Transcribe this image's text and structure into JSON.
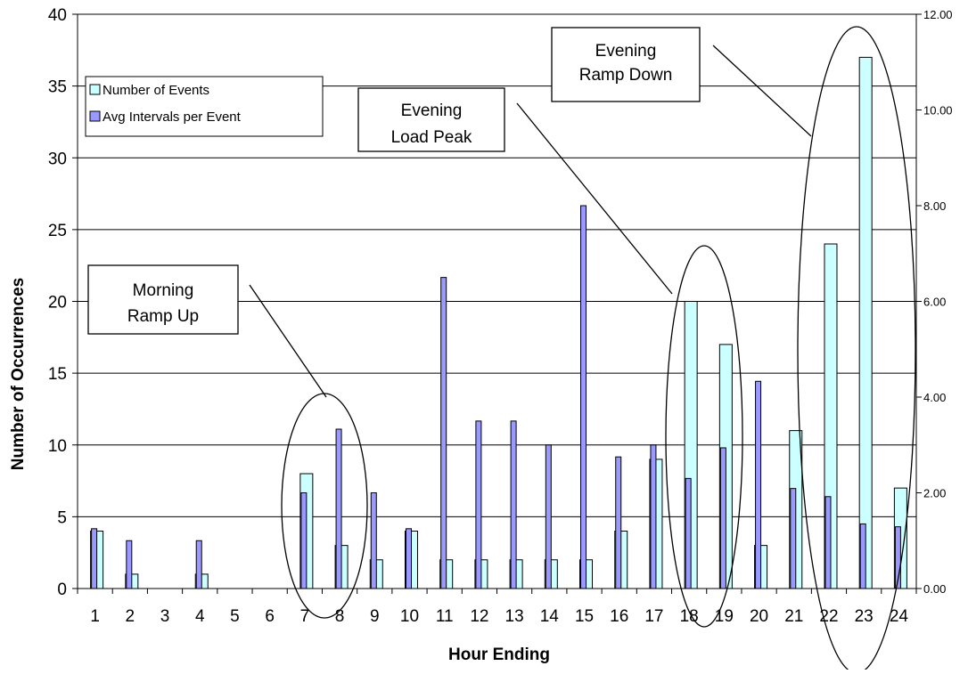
{
  "chart_data": {
    "type": "bar",
    "title": "",
    "xlabel": "Hour Ending",
    "ylabel": "Number of Occurrences",
    "y2label": "",
    "categories": [
      "1",
      "2",
      "3",
      "4",
      "5",
      "6",
      "7",
      "8",
      "9",
      "10",
      "11",
      "12",
      "13",
      "14",
      "15",
      "16",
      "17",
      "18",
      "19",
      "20",
      "21",
      "22",
      "23",
      "24"
    ],
    "ylim": [
      0,
      40
    ],
    "y2lim": [
      0,
      12
    ],
    "y_ticks": [
      "0",
      "5",
      "10",
      "15",
      "20",
      "25",
      "30",
      "35",
      "40"
    ],
    "y2_ticks": [
      "0.00",
      "2.00",
      "4.00",
      "6.00",
      "8.00",
      "10.00",
      "12.00"
    ],
    "grid": true,
    "legend_position": "top-left",
    "series": [
      {
        "name": "Number of Events",
        "axis": "left",
        "color": "#ccffff",
        "values": [
          4,
          1,
          0,
          1,
          0,
          0,
          8,
          3,
          2,
          4,
          2,
          2,
          2,
          2,
          2,
          4,
          9,
          20,
          17,
          3,
          11,
          24,
          37,
          7
        ]
      },
      {
        "name": "Avg Intervals per Event",
        "axis": "right",
        "color": "#9999ff",
        "values": [
          1.25,
          1.0,
          0,
          1.0,
          0,
          0,
          2.0,
          3.33,
          2.0,
          1.25,
          6.5,
          3.5,
          3.5,
          3.0,
          8.0,
          2.75,
          3.0,
          2.3,
          2.94,
          4.33,
          2.09,
          1.92,
          1.35,
          1.29
        ]
      }
    ],
    "annotations": [
      {
        "id": "morning",
        "lines": [
          "Morning",
          "Ramp Up"
        ]
      },
      {
        "id": "evening-peak",
        "lines": [
          "Evening",
          "Load Peak"
        ]
      },
      {
        "id": "evening-down",
        "lines": [
          "Evening",
          "Ramp Down"
        ]
      }
    ]
  }
}
